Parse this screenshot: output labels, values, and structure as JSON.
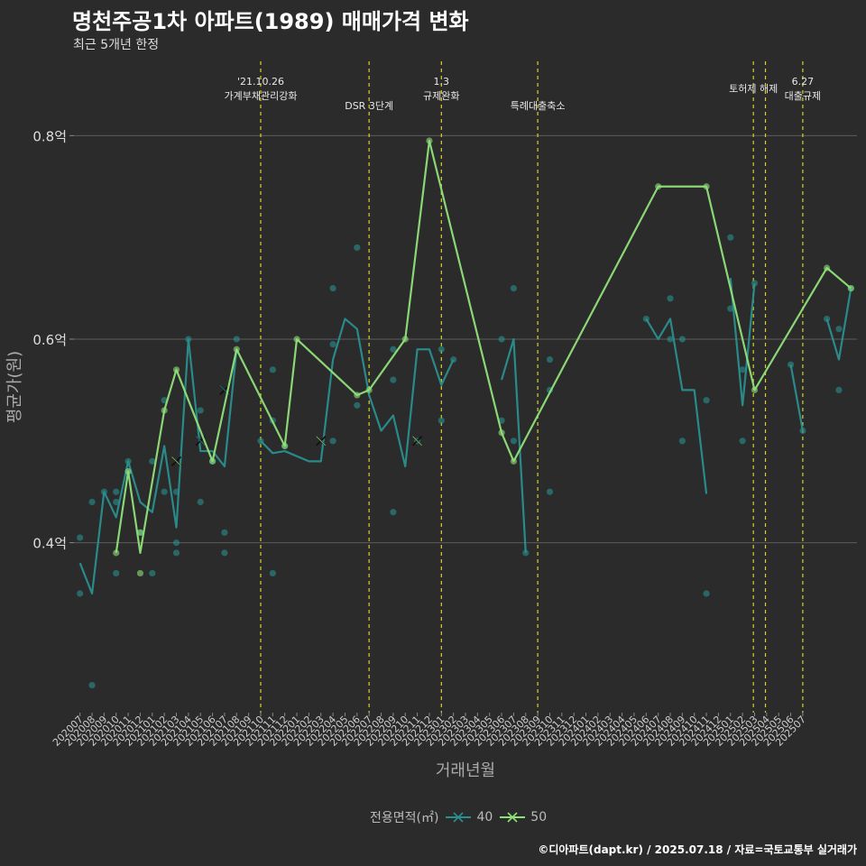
{
  "header": {
    "title": "명천주공1차 아파트(1989) 매매가격 변화",
    "subtitle": "최근 5개년 한정"
  },
  "footer": "©디아파트(dapt.kr) / 2025.07.18 / 자료=국토교통부 실거래가",
  "legend": {
    "title": "전용면적(㎡)",
    "items": [
      {
        "label": "40",
        "color": "#2a8f8f"
      },
      {
        "label": "50",
        "color": "#90e07a"
      }
    ]
  },
  "chart_data": {
    "type": "line",
    "xlabel": "거래년월",
    "ylabel": "평균가(원)",
    "ylim": [
      0.233,
      0.873
    ],
    "y_ticks": [
      {
        "value": 0.4,
        "label": "0.4억"
      },
      {
        "value": 0.6,
        "label": "0.6억"
      },
      {
        "value": 0.8,
        "label": "0.8억"
      }
    ],
    "categories": [
      "202007",
      "202008",
      "202009",
      "202010",
      "202011",
      "202012",
      "202101",
      "202102",
      "202103",
      "202104",
      "202105",
      "202106",
      "202107",
      "202108",
      "202109",
      "202110",
      "202111",
      "202112",
      "202201",
      "202202",
      "202203",
      "202204",
      "202205",
      "202206",
      "202207",
      "202208",
      "202209",
      "202210",
      "202211",
      "202212",
      "202301",
      "202302",
      "202303",
      "202304",
      "202305",
      "202306",
      "202307",
      "202308",
      "202309",
      "202310",
      "202311",
      "202312",
      "202401",
      "202402",
      "202403",
      "202404",
      "202405",
      "202406",
      "202407",
      "202408",
      "202409",
      "202410",
      "202411",
      "202412",
      "202501",
      "202502",
      "202503",
      "202504",
      "202505",
      "202506",
      "202507"
    ],
    "events": [
      {
        "x": 15.0,
        "lines": [
          "'21.10.26",
          "가계부채관리강화"
        ]
      },
      {
        "x": 24.0,
        "lines": [
          "DSR 3단계"
        ]
      },
      {
        "x": 30.0,
        "lines": [
          "1.3",
          "규제완화"
        ]
      },
      {
        "x": 38.0,
        "lines": [
          "특례대출축소"
        ]
      },
      {
        "x": 55.9,
        "lines": [
          "토허제 해제"
        ]
      },
      {
        "x": 56.9,
        "lines": []
      },
      {
        "x": 60.0,
        "lines": [
          "6.27",
          "대출규제"
        ]
      }
    ],
    "series": [
      {
        "name": "40",
        "color": "#2a8f8f",
        "segments": [
          [
            [
              0,
              0.38
            ],
            [
              1,
              0.35
            ],
            [
              2,
              0.45
            ],
            [
              3,
              0.425
            ],
            [
              4,
              0.48
            ],
            [
              5,
              0.44
            ],
            [
              6,
              0.43
            ],
            [
              7,
              0.495
            ],
            [
              8,
              0.415
            ],
            [
              9,
              0.6
            ],
            [
              10,
              0.49
            ],
            [
              11,
              0.49
            ],
            [
              12,
              0.475
            ],
            [
              13,
              0.59
            ]
          ],
          [
            [
              15,
              0.5
            ],
            [
              16,
              0.488
            ],
            [
              17,
              0.49
            ],
            [
              19,
              0.48
            ],
            [
              20,
              0.48
            ],
            [
              21,
              0.58
            ],
            [
              22,
              0.62
            ],
            [
              23,
              0.61
            ],
            [
              24,
              0.545
            ],
            [
              25,
              0.51
            ],
            [
              26,
              0.525
            ],
            [
              27,
              0.475
            ],
            [
              28,
              0.59
            ],
            [
              29,
              0.59
            ],
            [
              30,
              0.555
            ],
            [
              31,
              0.58
            ]
          ],
          [
            [
              35,
              0.56
            ],
            [
              36,
              0.6
            ],
            [
              37,
              0.39
            ]
          ],
          [
            [
              47,
              0.62
            ],
            [
              48,
              0.6
            ],
            [
              49,
              0.62
            ],
            [
              50,
              0.55
            ],
            [
              51,
              0.55
            ],
            [
              52,
              0.448
            ]
          ],
          [
            [
              54,
              0.66
            ],
            [
              55,
              0.535
            ],
            [
              56,
              0.655
            ]
          ],
          [
            [
              59,
              0.575
            ],
            [
              60,
              0.51
            ]
          ],
          [
            [
              62,
              0.62
            ],
            [
              63,
              0.58
            ],
            [
              64,
              0.65
            ]
          ]
        ],
        "points": [
          [
            0,
            0.405
          ],
          [
            0,
            0.35
          ],
          [
            1,
            0.44
          ],
          [
            1,
            0.26
          ],
          [
            2,
            0.45
          ],
          [
            3,
            0.45
          ],
          [
            3,
            0.44
          ],
          [
            3,
            0.37
          ],
          [
            4,
            0.48
          ],
          [
            4,
            0.47
          ],
          [
            5,
            0.41
          ],
          [
            6,
            0.37
          ],
          [
            6,
            0.48
          ],
          [
            7,
            0.54
          ],
          [
            7,
            0.45
          ],
          [
            8,
            0.45
          ],
          [
            8,
            0.4
          ],
          [
            8,
            0.39
          ],
          [
            9,
            0.6
          ],
          [
            10,
            0.53
          ],
          [
            10,
            0.44
          ],
          [
            11,
            0.48
          ],
          [
            12,
            0.41
          ],
          [
            12,
            0.39
          ],
          [
            13,
            0.6
          ],
          [
            15,
            0.5
          ],
          [
            16,
            0.57
          ],
          [
            16,
            0.52
          ],
          [
            16,
            0.37
          ],
          [
            17,
            0.495
          ],
          [
            21,
            0.65
          ],
          [
            21,
            0.595
          ],
          [
            21,
            0.5
          ],
          [
            23,
            0.69
          ],
          [
            23,
            0.535
          ],
          [
            26,
            0.59
          ],
          [
            26,
            0.56
          ],
          [
            26,
            0.43
          ],
          [
            28,
            0.5
          ],
          [
            30,
            0.59
          ],
          [
            30,
            0.52
          ],
          [
            31,
            0.58
          ],
          [
            35,
            0.6
          ],
          [
            35,
            0.52
          ],
          [
            36,
            0.65
          ],
          [
            36,
            0.5
          ],
          [
            37,
            0.39
          ],
          [
            39,
            0.58
          ],
          [
            39,
            0.55
          ],
          [
            39,
            0.45
          ],
          [
            47,
            0.62
          ],
          [
            49,
            0.64
          ],
          [
            49,
            0.6
          ],
          [
            50,
            0.6
          ],
          [
            50,
            0.5
          ],
          [
            52,
            0.54
          ],
          [
            52,
            0.35
          ],
          [
            54,
            0.7
          ],
          [
            54,
            0.63
          ],
          [
            55,
            0.57
          ],
          [
            55,
            0.5
          ],
          [
            56,
            0.655
          ],
          [
            59,
            0.575
          ],
          [
            60,
            0.51
          ],
          [
            62,
            0.62
          ],
          [
            63,
            0.61
          ],
          [
            63,
            0.55
          ],
          [
            64,
            0.65
          ]
        ],
        "x_marks": [
          [
            12,
            0.55
          ],
          [
            10,
            0.5
          ]
        ]
      },
      {
        "name": "50",
        "color": "#90e07a",
        "segments": [
          [
            [
              3,
              0.39
            ],
            [
              4,
              0.47
            ],
            [
              5,
              0.39
            ],
            [
              7,
              0.53
            ],
            [
              8,
              0.57
            ],
            [
              11,
              0.48
            ],
            [
              13,
              0.59
            ],
            [
              17,
              0.495
            ],
            [
              18,
              0.6
            ],
            [
              23,
              0.545
            ],
            [
              24,
              0.55
            ],
            [
              27,
              0.6
            ],
            [
              29,
              0.795
            ],
            [
              35,
              0.508
            ],
            [
              36,
              0.48
            ],
            [
              48,
              0.75
            ],
            [
              52,
              0.75
            ],
            [
              56,
              0.55
            ],
            [
              62,
              0.67
            ],
            [
              64,
              0.65
            ]
          ]
        ],
        "points": [
          [
            3,
            0.39
          ],
          [
            4,
            0.47
          ],
          [
            5,
            0.41
          ],
          [
            5,
            0.37
          ],
          [
            7,
            0.53
          ],
          [
            8,
            0.57
          ],
          [
            11,
            0.48
          ],
          [
            13,
            0.59
          ],
          [
            17,
            0.495
          ],
          [
            18,
            0.6
          ],
          [
            23,
            0.545
          ],
          [
            24,
            0.55
          ],
          [
            27,
            0.6
          ],
          [
            29,
            0.795
          ],
          [
            35,
            0.508
          ],
          [
            36,
            0.48
          ],
          [
            48,
            0.75
          ],
          [
            52,
            0.75
          ],
          [
            56,
            0.55
          ],
          [
            62,
            0.67
          ],
          [
            64,
            0.65
          ]
        ],
        "x_marks": [
          [
            8,
            0.48
          ],
          [
            20,
            0.5
          ],
          [
            28,
            0.5
          ]
        ]
      }
    ]
  }
}
